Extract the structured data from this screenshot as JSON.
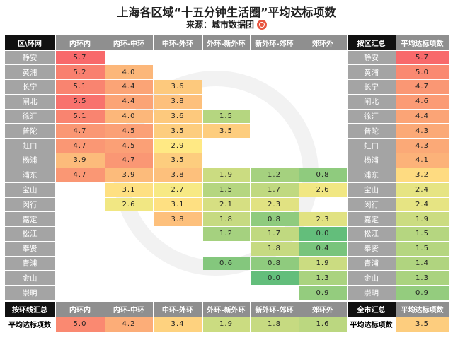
{
  "title": "上海各区域“十五分钟生活圈”平均达标项数",
  "source": "来源：城市数据团",
  "chart_data": {
    "type": "heatmap",
    "title": "上海各区域“十五分钟生活圈”平均达标项数",
    "corner_label": "区\\环网",
    "columns": [
      "内环内",
      "内环-中环",
      "中环-外环",
      "外环-新外环",
      "新外环-郊环",
      "郊环外"
    ],
    "rows": [
      "静安",
      "黄浦",
      "长宁",
      "闸北",
      "徐汇",
      "普陀",
      "虹口",
      "杨浦",
      "浦东",
      "宝山",
      "闵行",
      "嘉定",
      "松江",
      "奉贤",
      "青浦",
      "金山",
      "崇明"
    ],
    "values": [
      [
        "5.7",
        null,
        null,
        null,
        null,
        null
      ],
      [
        "5.2",
        "4.0",
        null,
        null,
        null,
        null
      ],
      [
        "5.1",
        "4.4",
        "3.6",
        null,
        null,
        null
      ],
      [
        "5.5",
        "4.4",
        "3.8",
        null,
        null,
        null
      ],
      [
        "5.1",
        "4.0",
        "3.6",
        "1.5",
        null,
        null
      ],
      [
        "4.7",
        "4.5",
        "3.5",
        "3.5",
        null,
        null
      ],
      [
        "4.7",
        "4.5",
        "2.9",
        null,
        null,
        null
      ],
      [
        "3.9",
        "4.7",
        "3.5",
        null,
        null,
        null
      ],
      [
        "4.7",
        "3.9",
        "3.8",
        "1.9",
        "1.2",
        "0.8"
      ],
      [
        null,
        "3.1",
        "2.7",
        "1.5",
        "1.7",
        "2.6"
      ],
      [
        null,
        "2.6",
        "3.1",
        "2.1",
        "2.3",
        null
      ],
      [
        null,
        null,
        "3.8",
        "1.8",
        "0.8",
        "2.3"
      ],
      [
        null,
        null,
        null,
        "1.2",
        "1.7",
        "0.0"
      ],
      [
        null,
        null,
        null,
        null,
        "1.8",
        "0.4"
      ],
      [
        null,
        null,
        null,
        "0.6",
        "0.8",
        "1.9"
      ],
      [
        null,
        null,
        null,
        null,
        "0.0",
        "1.3"
      ],
      [
        null,
        null,
        null,
        null,
        null,
        "0.9"
      ]
    ],
    "district_summary": {
      "header": "按区汇总",
      "value_header": "平均达标项数",
      "values": [
        "5.7",
        "5.0",
        "4.7",
        "4.6",
        "4.4",
        "4.3",
        "4.3",
        "4.1",
        "3.2",
        "2.4",
        "2.4",
        "1.9",
        "1.5",
        "1.5",
        "1.4",
        "1.3",
        "0.9"
      ]
    },
    "ring_summary": {
      "header": "按环线汇总",
      "row_label": "平均达标项数",
      "values": [
        "5.0",
        "4.2",
        "3.4",
        "1.9",
        "1.8",
        "1.6"
      ]
    },
    "city_summary": {
      "header": "全市汇总",
      "value_header": "平均达标项数",
      "value": "3.5"
    },
    "colors": {
      "low": "#63be7b",
      "mid": "#ffeb84",
      "high": "#f8696b",
      "row_label_bg": "#a4a4a4",
      "header_bg": "#111111"
    },
    "scale": [
      0,
      5.7
    ]
  }
}
